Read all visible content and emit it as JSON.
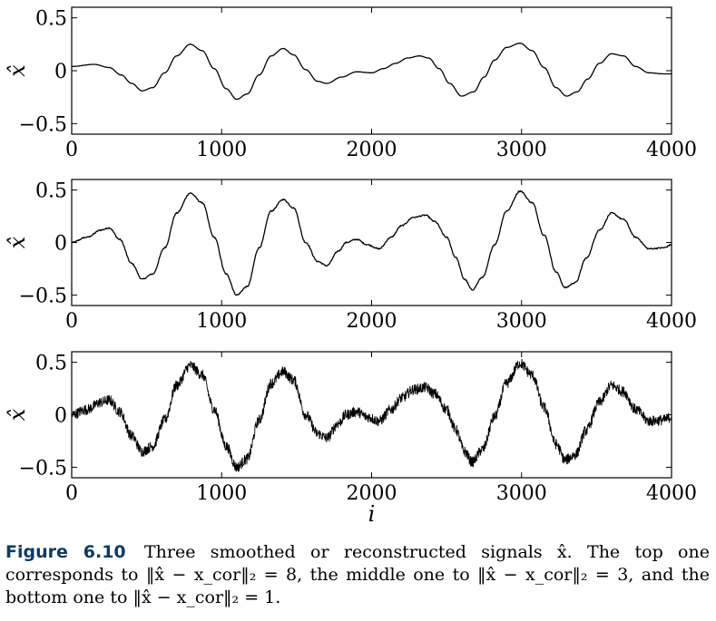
{
  "chart_data": [
    {
      "type": "line",
      "title": "",
      "xlabel": "",
      "ylabel": "x̂",
      "xlim": [
        0,
        4000
      ],
      "ylim": [
        -0.6,
        0.6
      ],
      "xticks": [
        "0",
        "1000",
        "2000",
        "3000",
        "4000"
      ],
      "yticks": [
        "−0.5",
        "0",
        "0.5"
      ],
      "noise_level": 0,
      "series": [
        {
          "name": "top",
          "x": [
            0,
            150,
            250,
            330,
            400,
            470,
            540,
            620,
            700,
            790,
            870,
            950,
            1030,
            1100,
            1170,
            1250,
            1330,
            1410,
            1480,
            1560,
            1640,
            1700,
            1800,
            1900,
            2000,
            2080,
            2160,
            2240,
            2320,
            2380,
            2450,
            2520,
            2600,
            2680,
            2750,
            2820,
            2900,
            2990,
            3070,
            3150,
            3230,
            3300,
            3370,
            3440,
            3520,
            3600,
            3680,
            3760,
            3850,
            3950,
            4000
          ],
          "y": [
            0.04,
            0.06,
            0.03,
            -0.04,
            -0.12,
            -0.19,
            -0.16,
            -0.02,
            0.14,
            0.25,
            0.19,
            0.02,
            -0.17,
            -0.27,
            -0.22,
            -0.04,
            0.14,
            0.21,
            0.15,
            0.01,
            -0.1,
            -0.12,
            -0.06,
            -0.01,
            -0.02,
            0.02,
            0.07,
            0.12,
            0.14,
            0.12,
            0.02,
            -0.12,
            -0.24,
            -0.2,
            -0.06,
            0.1,
            0.22,
            0.26,
            0.19,
            0.03,
            -0.16,
            -0.24,
            -0.2,
            -0.08,
            0.07,
            0.16,
            0.14,
            0.04,
            -0.02,
            -0.03,
            -0.03
          ]
        }
      ]
    },
    {
      "type": "line",
      "title": "",
      "xlabel": "",
      "ylabel": "x̂",
      "xlim": [
        0,
        4000
      ],
      "ylim": [
        -0.6,
        0.6
      ],
      "xticks": [
        "0",
        "1000",
        "2000",
        "3000",
        "4000"
      ],
      "yticks": [
        "−0.5",
        "0",
        "0.5"
      ],
      "noise_level": 0.006,
      "series": [
        {
          "name": "middle",
          "x": [
            0,
            100,
            200,
            250,
            320,
            400,
            470,
            540,
            620,
            700,
            790,
            870,
            950,
            1030,
            1100,
            1170,
            1250,
            1330,
            1410,
            1480,
            1560,
            1640,
            1700,
            1780,
            1830,
            1900,
            1970,
            2050,
            2130,
            2200,
            2280,
            2360,
            2420,
            2500,
            2560,
            2620,
            2670,
            2740,
            2820,
            2900,
            2990,
            3070,
            3150,
            3230,
            3290,
            3360,
            3430,
            3520,
            3600,
            3680,
            3760,
            3850,
            3950,
            4000
          ],
          "y": [
            0.0,
            0.05,
            0.12,
            0.14,
            0.03,
            -0.2,
            -0.35,
            -0.3,
            -0.05,
            0.28,
            0.47,
            0.38,
            0.05,
            -0.3,
            -0.5,
            -0.42,
            -0.05,
            0.3,
            0.41,
            0.33,
            0.0,
            -0.18,
            -0.22,
            -0.08,
            0.0,
            0.03,
            -0.02,
            -0.06,
            0.05,
            0.16,
            0.24,
            0.26,
            0.2,
            0.05,
            -0.14,
            -0.35,
            -0.45,
            -0.33,
            -0.02,
            0.3,
            0.49,
            0.38,
            0.07,
            -0.28,
            -0.43,
            -0.38,
            -0.15,
            0.12,
            0.28,
            0.22,
            0.05,
            -0.06,
            -0.05,
            -0.02
          ]
        }
      ]
    },
    {
      "type": "line",
      "title": "",
      "xlabel": "i",
      "ylabel": "x̂",
      "xlim": [
        0,
        4000
      ],
      "ylim": [
        -0.6,
        0.6
      ],
      "xticks": [
        "0",
        "1000",
        "2000",
        "3000",
        "4000"
      ],
      "yticks": [
        "−0.5",
        "0",
        "0.5"
      ],
      "noise_level": 0.05,
      "series": [
        {
          "name": "bottom",
          "x": [
            0,
            100,
            200,
            250,
            320,
            400,
            470,
            540,
            620,
            700,
            790,
            870,
            950,
            1030,
            1100,
            1170,
            1250,
            1330,
            1410,
            1480,
            1560,
            1640,
            1700,
            1780,
            1830,
            1900,
            1970,
            2050,
            2130,
            2200,
            2280,
            2360,
            2420,
            2500,
            2560,
            2620,
            2670,
            2740,
            2820,
            2900,
            2990,
            3070,
            3150,
            3230,
            3290,
            3360,
            3430,
            3520,
            3600,
            3680,
            3760,
            3850,
            3950,
            4000
          ],
          "y": [
            0.0,
            0.05,
            0.12,
            0.14,
            0.03,
            -0.2,
            -0.35,
            -0.3,
            -0.05,
            0.28,
            0.47,
            0.38,
            0.05,
            -0.3,
            -0.5,
            -0.42,
            -0.05,
            0.3,
            0.41,
            0.33,
            0.0,
            -0.18,
            -0.22,
            -0.08,
            0.0,
            0.03,
            -0.02,
            -0.06,
            0.05,
            0.16,
            0.24,
            0.26,
            0.2,
            0.05,
            -0.14,
            -0.35,
            -0.45,
            -0.33,
            -0.02,
            0.3,
            0.49,
            0.38,
            0.07,
            -0.28,
            -0.43,
            -0.38,
            -0.15,
            0.12,
            0.28,
            0.22,
            0.05,
            -0.06,
            -0.05,
            -0.02
          ]
        }
      ]
    }
  ],
  "caption": {
    "label": "Figure 6.10",
    "text": "Three smoothed or reconstructed signals x̂. The top one corresponds to ‖x̂ − x_cor‖₂ = 8, the middle one to ‖x̂ − x_cor‖₂ = 3, and the bottom one to ‖x̂ − x_cor‖₂ = 1."
  }
}
